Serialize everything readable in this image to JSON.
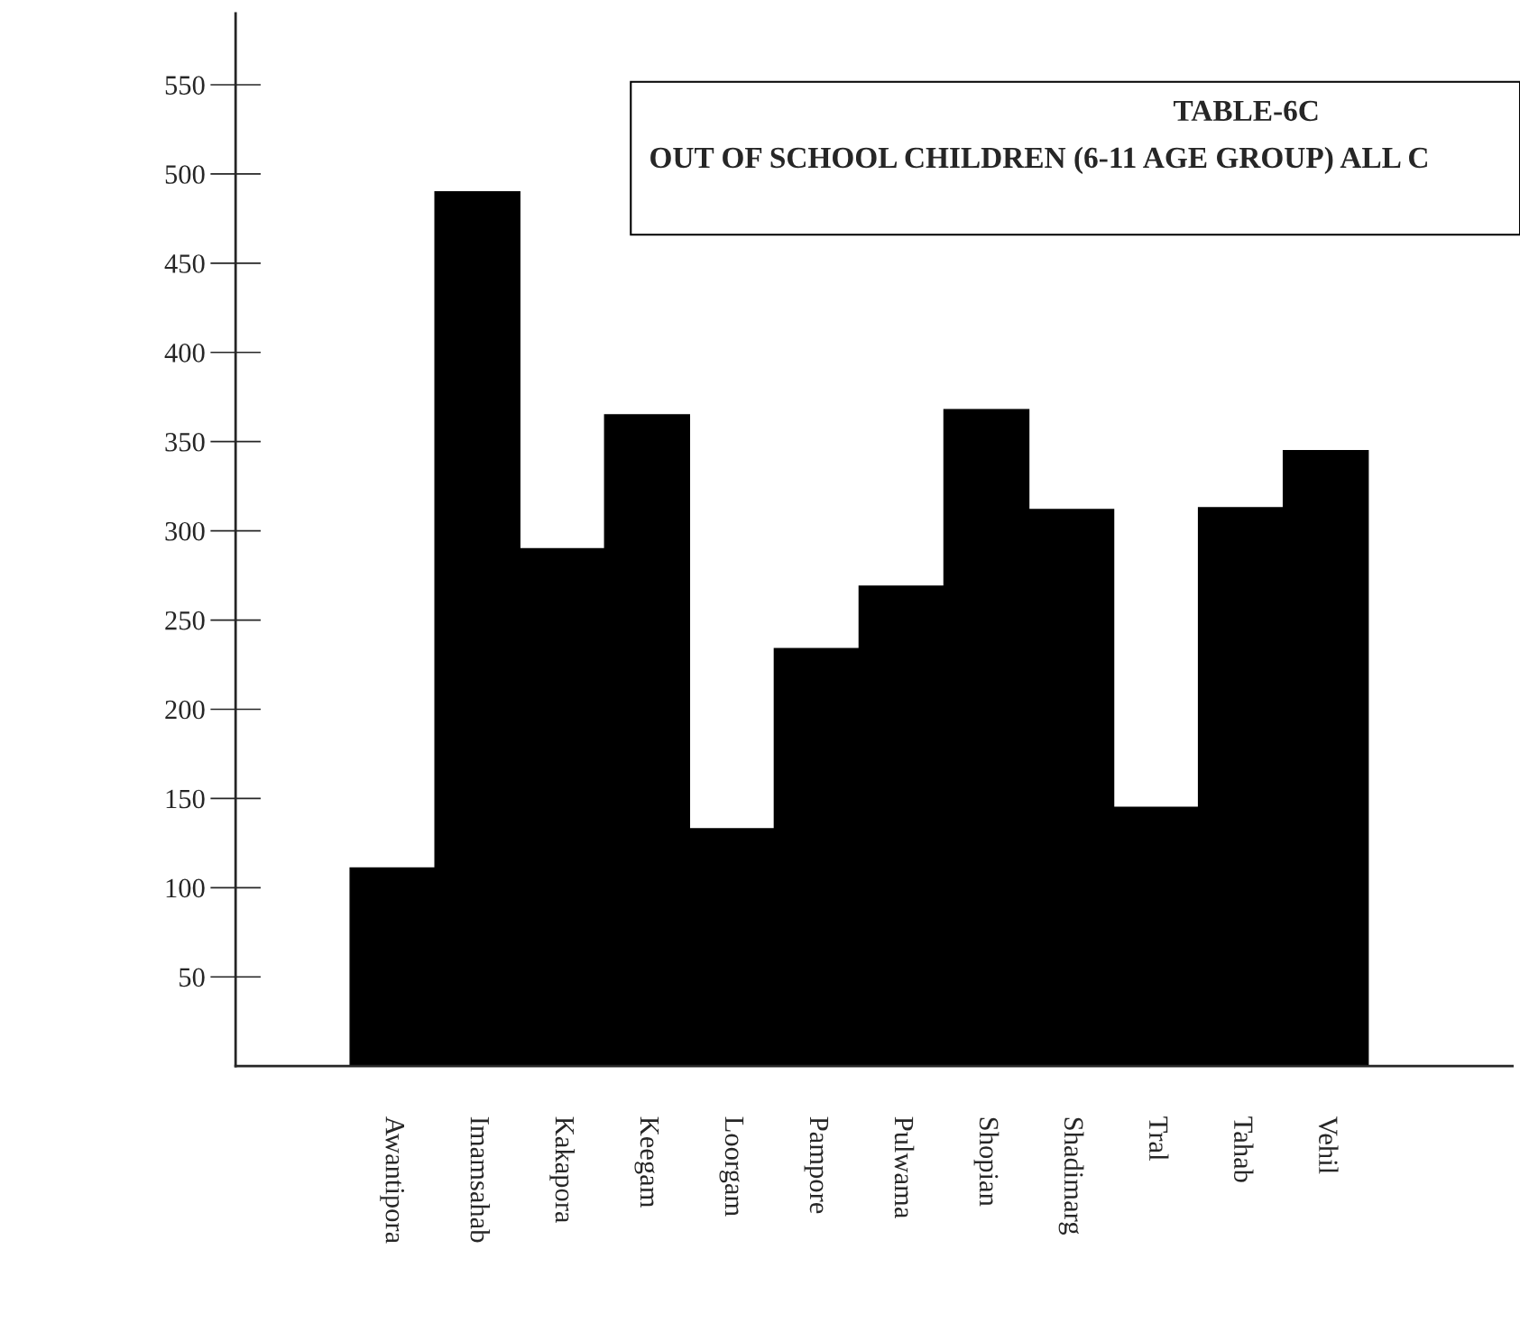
{
  "chart_data": {
    "type": "bar",
    "title": "TABLE-6C",
    "subtitle": "OUT OF SCHOOL CHILDREN (6-11 AGE GROUP) ALL C",
    "categories": [
      "Awantipora",
      "Imamsahab",
      "Kakapora",
      "Keegam",
      "Loorgam",
      "Pampore",
      "Pulwama",
      "Shopian",
      "Shadimarg",
      "Tral",
      "Tahab",
      "Vehil"
    ],
    "values": [
      111,
      490,
      290,
      365,
      133,
      234,
      269,
      368,
      312,
      145,
      313,
      345
    ],
    "color": "#000000",
    "ylim": [
      0,
      590
    ],
    "yticks": [
      50,
      100,
      150,
      200,
      250,
      300,
      350,
      400,
      450,
      500,
      550
    ],
    "grid": false,
    "legend": false
  }
}
